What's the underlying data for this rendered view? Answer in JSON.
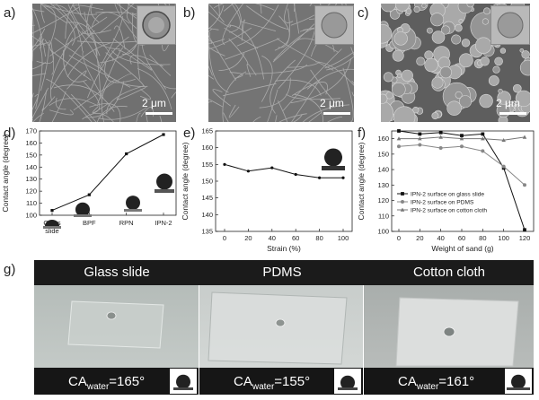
{
  "panels": {
    "a": {
      "label": "a)",
      "scale": "2 μm"
    },
    "b": {
      "label": "b)",
      "scale": "2 μm"
    },
    "c": {
      "label": "c)",
      "scale": "2 μm"
    },
    "d": {
      "label": "d)"
    },
    "e": {
      "label": "e)"
    },
    "f": {
      "label": "f)"
    },
    "g": {
      "label": "g)"
    }
  },
  "chart_data": [
    {
      "panel": "d",
      "type": "line",
      "categories": [
        "Glass slide",
        "BPF",
        "RPN",
        "IPN-2"
      ],
      "category_lines": [
        [
          "Glass",
          "slide"
        ],
        [
          "BPF"
        ],
        [
          "RPN"
        ],
        [
          "IPN-2"
        ]
      ],
      "values": [
        104,
        117,
        151,
        167
      ],
      "ylabel": "Contact angle (degree)",
      "ylim": [
        100,
        170
      ],
      "yticks": [
        100,
        110,
        120,
        130,
        140,
        150,
        160,
        170
      ],
      "color": "#111111"
    },
    {
      "panel": "e",
      "type": "line",
      "x": [
        0,
        20,
        40,
        60,
        80,
        100
      ],
      "values": [
        155,
        153,
        154,
        152,
        151,
        151
      ],
      "xlabel": "Strain (%)",
      "ylabel": "Contact angle (degree)",
      "xlim": [
        0,
        100
      ],
      "ylim": [
        135,
        165
      ],
      "yticks": [
        135,
        140,
        145,
        150,
        155,
        160,
        165
      ],
      "xticks": [
        0,
        20,
        40,
        60,
        80,
        100
      ],
      "color": "#111111"
    },
    {
      "panel": "f",
      "type": "line",
      "x": [
        0,
        20,
        40,
        60,
        80,
        100,
        120
      ],
      "xlabel": "Weight of sand (g)",
      "ylabel": "Contact angle (degree)",
      "xlim": [
        0,
        120
      ],
      "ylim": [
        100,
        165
      ],
      "yticks": [
        100,
        110,
        120,
        130,
        140,
        150,
        160
      ],
      "xticks": [
        0,
        20,
        40,
        60,
        80,
        100,
        120
      ],
      "legend_position": "bottom-left",
      "series": [
        {
          "name": "IPN-2 surface on glass slide",
          "values": [
            165,
            163,
            164,
            162,
            163,
            141,
            101
          ],
          "marker": "square",
          "color": "#111111"
        },
        {
          "name": "IPN-2 surface on PDMS",
          "values": [
            155,
            156,
            154,
            155,
            152,
            142,
            130
          ],
          "marker": "circle",
          "color": "#888888"
        },
        {
          "name": "IPN-2 surface on cotton cloth",
          "values": [
            160,
            160,
            161,
            160,
            160,
            159,
            161
          ],
          "marker": "triangle",
          "color": "#777777"
        }
      ]
    }
  ],
  "photos": [
    {
      "title": "Glass slide",
      "ca_prefix": "CA",
      "ca_sub": "water",
      "ca_value": "=165°"
    },
    {
      "title": "PDMS",
      "ca_prefix": "CA",
      "ca_sub": "water",
      "ca_value": "=155°"
    },
    {
      "title": "Cotton cloth",
      "ca_prefix": "CA",
      "ca_sub": "water",
      "ca_value": "=161°"
    }
  ]
}
